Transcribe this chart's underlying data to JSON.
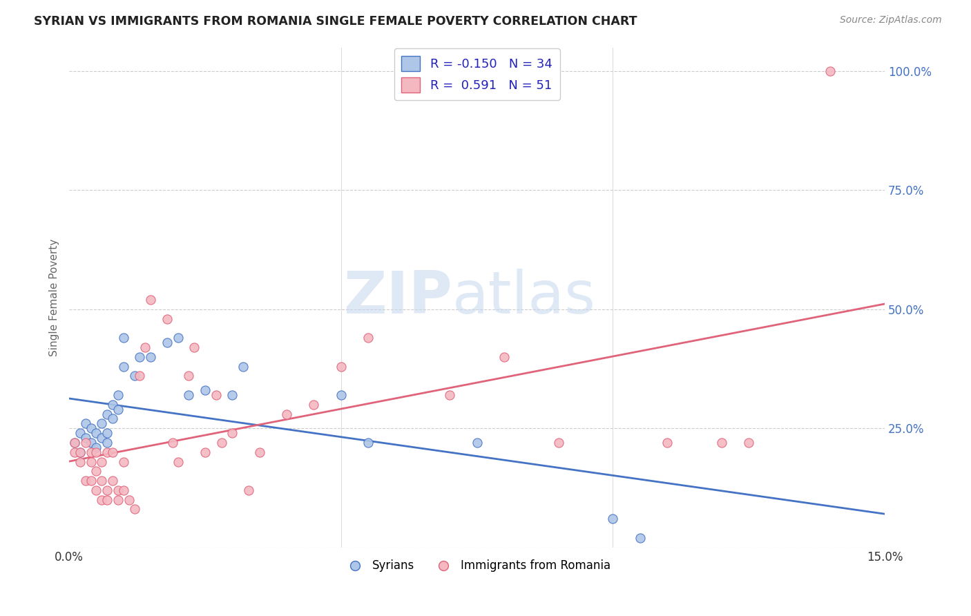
{
  "title": "SYRIAN VS IMMIGRANTS FROM ROMANIA SINGLE FEMALE POVERTY CORRELATION CHART",
  "source": "Source: ZipAtlas.com",
  "ylabel": "Single Female Poverty",
  "xlim": [
    0.0,
    0.15
  ],
  "ylim": [
    0.0,
    1.05
  ],
  "yticks": [
    0.0,
    0.25,
    0.5,
    0.75,
    1.0
  ],
  "ytick_labels": [
    "",
    "25.0%",
    "50.0%",
    "75.0%",
    "100.0%"
  ],
  "background_color": "#ffffff",
  "watermark_zip": "ZIP",
  "watermark_atlas": "atlas",
  "legend_R_syrian": "-0.150",
  "legend_N_syrian": "34",
  "legend_R_romania": "0.591",
  "legend_N_romania": "51",
  "legend_labels": [
    "Syrians",
    "Immigrants from Romania"
  ],
  "syrian_color": "#aec6e8",
  "romania_color": "#f4b8c1",
  "syrian_line_color": "#4472c4",
  "romania_line_color": "#e0637a",
  "syrian_x": [
    0.001,
    0.002,
    0.002,
    0.003,
    0.003,
    0.004,
    0.004,
    0.005,
    0.005,
    0.006,
    0.006,
    0.007,
    0.007,
    0.007,
    0.008,
    0.008,
    0.009,
    0.009,
    0.01,
    0.01,
    0.012,
    0.013,
    0.015,
    0.018,
    0.02,
    0.022,
    0.025,
    0.03,
    0.032,
    0.05,
    0.055,
    0.075,
    0.1,
    0.105
  ],
  "syrian_y": [
    0.22,
    0.2,
    0.24,
    0.23,
    0.26,
    0.22,
    0.25,
    0.21,
    0.24,
    0.23,
    0.26,
    0.24,
    0.22,
    0.28,
    0.27,
    0.3,
    0.29,
    0.32,
    0.44,
    0.38,
    0.36,
    0.4,
    0.4,
    0.43,
    0.44,
    0.32,
    0.33,
    0.32,
    0.38,
    0.32,
    0.22,
    0.22,
    0.06,
    0.02
  ],
  "romania_x": [
    0.001,
    0.001,
    0.002,
    0.002,
    0.003,
    0.003,
    0.004,
    0.004,
    0.004,
    0.005,
    0.005,
    0.005,
    0.006,
    0.006,
    0.006,
    0.007,
    0.007,
    0.007,
    0.008,
    0.008,
    0.009,
    0.009,
    0.01,
    0.01,
    0.011,
    0.012,
    0.013,
    0.014,
    0.015,
    0.018,
    0.019,
    0.02,
    0.022,
    0.023,
    0.025,
    0.027,
    0.028,
    0.03,
    0.033,
    0.035,
    0.04,
    0.045,
    0.05,
    0.055,
    0.07,
    0.08,
    0.09,
    0.11,
    0.12,
    0.125,
    0.14
  ],
  "romania_y": [
    0.2,
    0.22,
    0.18,
    0.2,
    0.14,
    0.22,
    0.14,
    0.18,
    0.2,
    0.12,
    0.16,
    0.2,
    0.1,
    0.14,
    0.18,
    0.1,
    0.12,
    0.2,
    0.14,
    0.2,
    0.1,
    0.12,
    0.12,
    0.18,
    0.1,
    0.08,
    0.36,
    0.42,
    0.52,
    0.48,
    0.22,
    0.18,
    0.36,
    0.42,
    0.2,
    0.32,
    0.22,
    0.24,
    0.12,
    0.2,
    0.28,
    0.3,
    0.38,
    0.44,
    0.32,
    0.4,
    0.22,
    0.22,
    0.22,
    0.22,
    1.0
  ]
}
